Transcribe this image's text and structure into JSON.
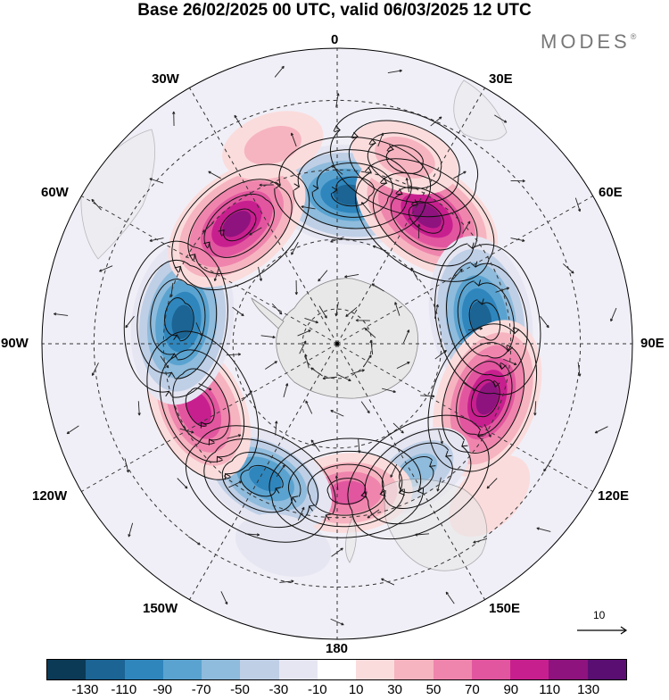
{
  "title": "Base 26/02/2025 00 UTC, valid 06/03/2025 12 UTC",
  "logo": "MODES",
  "logo_mark": "®",
  "longitude_labels": {
    "lon_0": "0",
    "lon_30e": "30E",
    "lon_60e": "60E",
    "lon_90e": "90E",
    "lon_120e": "120E",
    "lon_150e": "150E",
    "lon_180": "180",
    "lon_150w": "150W",
    "lon_120w": "120W",
    "lon_90w": "90W",
    "lon_60w": "60W",
    "lon_30w": "30W"
  },
  "reference_vector": "10",
  "colorbar": {
    "colors": [
      "#0b3a56",
      "#1b6494",
      "#2f86bd",
      "#5aa3d0",
      "#8fbbdc",
      "#bfcfe6",
      "#e6e6f2",
      "#ffffff",
      "#fbdcdc",
      "#f6b4c0",
      "#ef85ad",
      "#e2569f",
      "#c81f8f",
      "#8e137e",
      "#5a0e72"
    ],
    "tick_labels": [
      "-130",
      "-110",
      "-90",
      "-70",
      "-50",
      "-30",
      "-10",
      "10",
      "30",
      "50",
      "70",
      "90",
      "110",
      "130"
    ]
  },
  "anomaly_centers": [
    {
      "lon": 5,
      "lat": -47,
      "value": -120
    },
    {
      "lon": 35,
      "lat": -45,
      "value": 115
    },
    {
      "lon": 80,
      "lat": -48,
      "value": -125
    },
    {
      "lon": 110,
      "lat": -44,
      "value": 120
    },
    {
      "lon": 148,
      "lat": -47,
      "value": -50
    },
    {
      "lon": 176,
      "lat": -47,
      "value": 70
    },
    {
      "lon": -152,
      "lat": -46,
      "value": -90
    },
    {
      "lon": -115,
      "lat": -46,
      "value": 100
    },
    {
      "lon": -82,
      "lat": -45,
      "value": -125
    },
    {
      "lon": -40,
      "lat": -45,
      "value": 115
    },
    {
      "lon": 20,
      "lat": -33,
      "value": 40
    },
    {
      "lon": -18,
      "lat": -30,
      "value": 30
    },
    {
      "lon": 135,
      "lat": -28,
      "value": 20
    },
    {
      "lon": -165,
      "lat": -30,
      "value": -20
    }
  ]
}
